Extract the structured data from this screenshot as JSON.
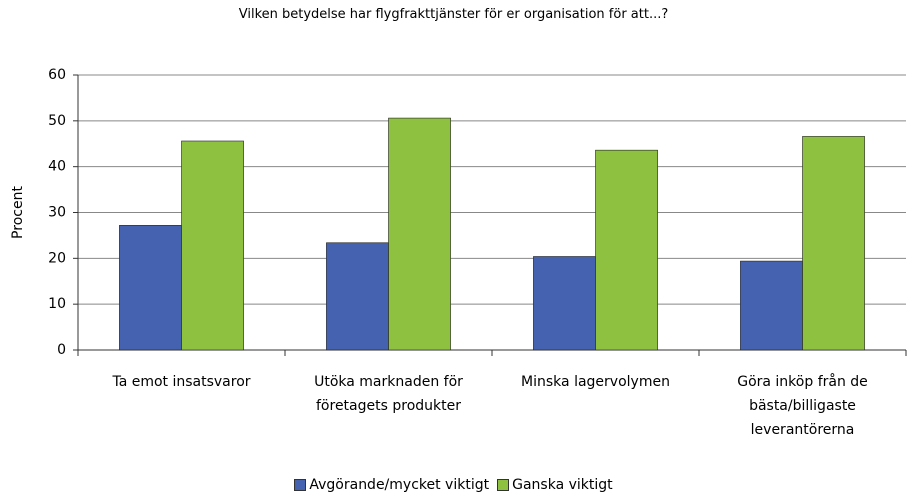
{
  "chart_data": {
    "type": "bar",
    "title": "Vilken betydelse har flygfrakttjänster för er organisation för att...?",
    "y_label": "Procent",
    "categories": [
      "Ta emot insatsvaror",
      "Utöka marknaden för företagets produkter",
      "Minska lagervolymen",
      "Göra inköp från de bästa/billigaste leverantörerna"
    ],
    "series": [
      {
        "name": "Avgörande/mycket viktigt",
        "color": "#4462af",
        "values": [
          27.2,
          23.4,
          20.4,
          19.4
        ]
      },
      {
        "name": "Ganska viktigt",
        "color": "#8dc13f",
        "values": [
          45.6,
          50.6,
          43.6,
          46.6
        ]
      }
    ],
    "ylim": [
      0,
      60
    ],
    "yticks": [
      0,
      10,
      20,
      30,
      40,
      50,
      60
    ],
    "grid": true,
    "legend": "bottom"
  }
}
